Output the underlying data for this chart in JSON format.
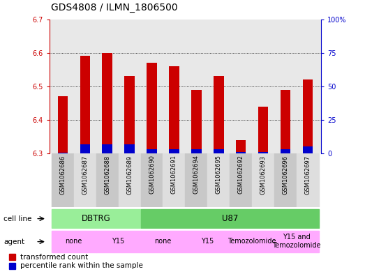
{
  "title": "GDS4808 / ILMN_1806500",
  "samples": [
    "GSM1062686",
    "GSM1062687",
    "GSM1062688",
    "GSM1062689",
    "GSM1062690",
    "GSM1062691",
    "GSM1062694",
    "GSM1062695",
    "GSM1062692",
    "GSM1062693",
    "GSM1062696",
    "GSM1062697"
  ],
  "transformed_count": [
    6.47,
    6.59,
    6.6,
    6.53,
    6.57,
    6.56,
    6.49,
    6.53,
    6.34,
    6.44,
    6.49,
    6.52
  ],
  "percentile_rank": [
    0.5,
    7.0,
    7.0,
    7.0,
    3.0,
    3.0,
    3.0,
    3.0,
    1.0,
    1.0,
    3.0,
    5.0
  ],
  "base_value": 6.3,
  "ylim_left": [
    6.3,
    6.7
  ],
  "ylim_right": [
    0,
    100
  ],
  "yticks_left": [
    6.3,
    6.4,
    6.5,
    6.6,
    6.7
  ],
  "yticks_right": [
    0,
    25,
    50,
    75,
    100
  ],
  "ytick_right_labels": [
    "0",
    "25",
    "50",
    "75",
    "100%"
  ],
  "bar_color_red": "#cc0000",
  "bar_color_blue": "#0000cc",
  "bar_width": 0.45,
  "cell_line_groups": [
    {
      "label": "DBTRG",
      "start": 0,
      "end": 3,
      "color": "#99ee99"
    },
    {
      "label": "U87",
      "start": 4,
      "end": 11,
      "color": "#66cc66"
    }
  ],
  "agent_groups": [
    {
      "label": "none",
      "start": 0,
      "end": 1,
      "color": "#ffaaff"
    },
    {
      "label": "Y15",
      "start": 2,
      "end": 3,
      "color": "#ffaaff"
    },
    {
      "label": "none",
      "start": 4,
      "end": 5,
      "color": "#ffaaff"
    },
    {
      "label": "Y15",
      "start": 6,
      "end": 7,
      "color": "#ffaaff"
    },
    {
      "label": "Temozolomide",
      "start": 8,
      "end": 9,
      "color": "#ffaaff"
    },
    {
      "label": "Y15 and\nTemozolomide",
      "start": 10,
      "end": 11,
      "color": "#ffaaff"
    }
  ],
  "legend_red": "transformed count",
  "legend_blue": "percentile rank within the sample",
  "cell_line_label": "cell line",
  "agent_label": "agent",
  "grid_color": "#000000",
  "bg_color": "#ffffff",
  "left_axis_color": "#cc0000",
  "right_axis_color": "#0000cc"
}
